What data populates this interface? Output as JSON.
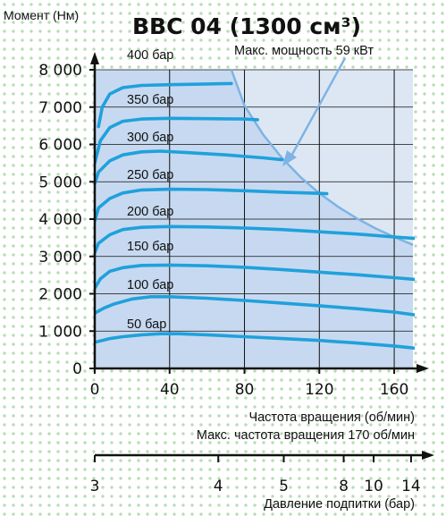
{
  "chart_data": {
    "type": "line",
    "title": "BBC 04 (1300 см³)",
    "ylabel": "Момент (Нм)",
    "xlabel": "Частота вращения (об/мин)",
    "xnote": "Макс. частота вращения 170 об/мин",
    "power_annotation": "Макс. мощность 59 кВт",
    "secondary_axis_label": "Давление подпитки (бар)",
    "xlim": [
      0,
      170
    ],
    "ylim": [
      0,
      8000
    ],
    "x_ticks": [
      "0",
      "40",
      "80",
      "120",
      "160"
    ],
    "x_tick_values": [
      0,
      40,
      80,
      120,
      160
    ],
    "y_ticks": [
      "0",
      "1 000",
      "2 000",
      "3 000",
      "4 000",
      "5 000",
      "6 000",
      "7 000",
      "8 000"
    ],
    "y_tick_values": [
      0,
      1000,
      2000,
      3000,
      4000,
      5000,
      6000,
      7000,
      8000
    ],
    "secondary_ticks": [
      "3",
      "4",
      "5",
      "8",
      "10",
      "14"
    ],
    "secondary_tick_x": [
      0,
      66,
      101,
      133,
      149,
      169
    ],
    "gridlines_x": [
      40,
      80,
      120,
      160
    ],
    "power_curve": {
      "x": [
        73,
        80,
        90,
        100,
        110,
        120,
        130,
        140,
        150,
        160,
        170
      ],
      "y": [
        8000,
        7040,
        6260,
        5640,
        5120,
        4690,
        4330,
        4020,
        3750,
        3520,
        3310
      ]
    },
    "series": [
      {
        "name": "400 бар",
        "x": [],
        "y": []
      },
      {
        "name": "350 бар",
        "x": [
          2,
          4,
          8,
          15,
          25,
          40,
          60,
          73
        ],
        "y": [
          6480,
          7000,
          7350,
          7520,
          7580,
          7600,
          7620,
          7630
        ]
      },
      {
        "name": "300 бар",
        "x": [
          0,
          3,
          8,
          15,
          25,
          40,
          60,
          80,
          87
        ],
        "y": [
          5500,
          6100,
          6450,
          6620,
          6680,
          6700,
          6690,
          6680,
          6660
        ]
      },
      {
        "name": "250 бар",
        "x": [
          0,
          2,
          8,
          15,
          25,
          35,
          50,
          70,
          90,
          100
        ],
        "y": [
          4950,
          5260,
          5560,
          5720,
          5800,
          5820,
          5780,
          5720,
          5640,
          5590
        ]
      },
      {
        "name": "200 бар",
        "x": [
          0,
          2,
          8,
          15,
          25,
          40,
          60,
          80,
          100,
          120,
          124
        ],
        "y": [
          3950,
          4300,
          4550,
          4700,
          4780,
          4800,
          4790,
          4760,
          4720,
          4690,
          4680
        ]
      },
      {
        "name": "150 бар",
        "x": [
          0,
          2,
          8,
          15,
          25,
          40,
          60,
          80,
          100,
          120,
          140,
          160,
          172
        ],
        "y": [
          3100,
          3350,
          3580,
          3720,
          3780,
          3800,
          3790,
          3760,
          3720,
          3660,
          3600,
          3520,
          3480
        ]
      },
      {
        "name": "100 бар",
        "x": [
          0,
          3,
          8,
          15,
          25,
          40,
          60,
          80,
          100,
          120,
          140,
          160,
          172
        ],
        "y": [
          2150,
          2400,
          2600,
          2700,
          2760,
          2770,
          2750,
          2710,
          2650,
          2580,
          2510,
          2430,
          2380
        ]
      },
      {
        "name": "50 бар",
        "x": [
          0,
          5,
          10,
          20,
          30,
          40,
          60,
          80,
          100,
          120,
          140,
          160,
          172
        ],
        "y": [
          1480,
          1620,
          1720,
          1860,
          1920,
          1920,
          1880,
          1820,
          1750,
          1680,
          1600,
          1510,
          1430
        ]
      },
      {
        "name": "",
        "x": [
          0,
          8,
          15,
          25,
          35,
          45,
          60,
          80,
          100,
          120,
          140,
          160,
          172
        ],
        "y": [
          700,
          800,
          850,
          900,
          930,
          930,
          900,
          850,
          800,
          750,
          680,
          600,
          540
        ]
      }
    ],
    "series_color": "#1fa1dc",
    "plot_bg": "#c7d9f0",
    "grid": true
  }
}
